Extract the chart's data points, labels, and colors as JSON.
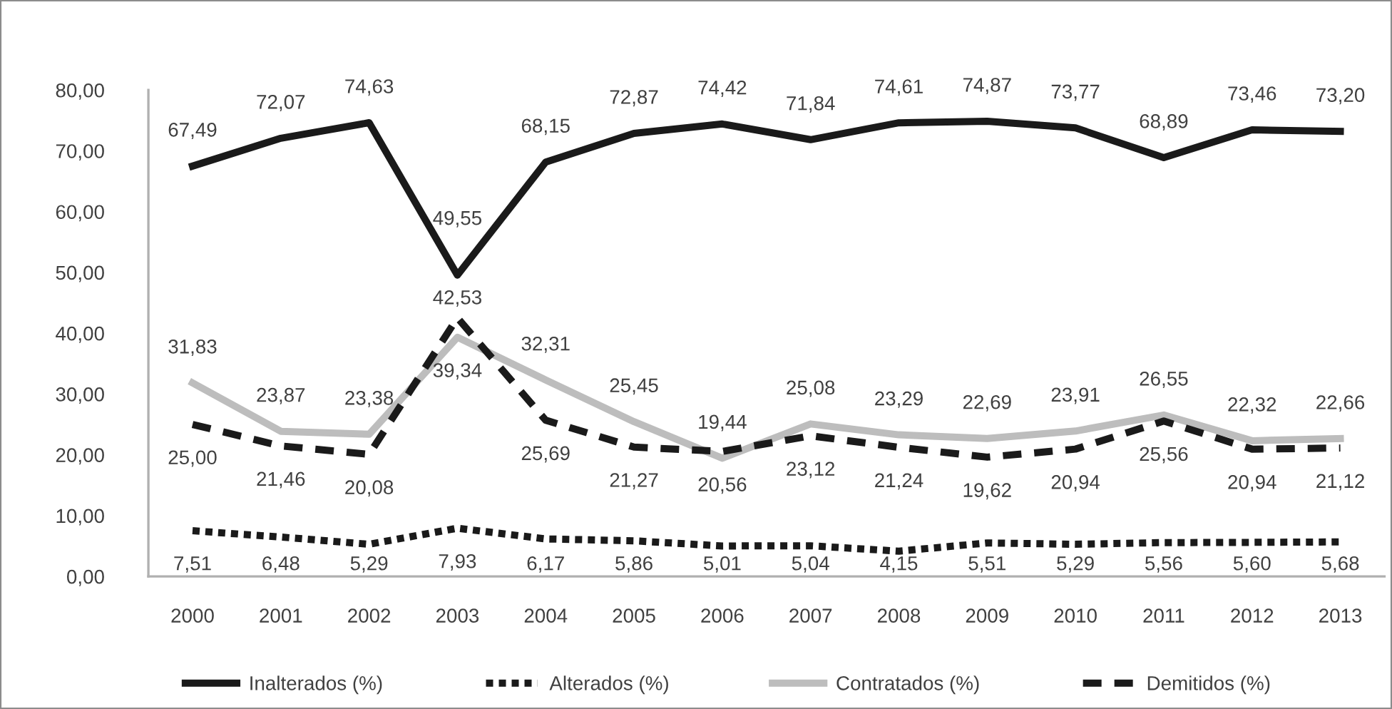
{
  "chart_data": {
    "type": "line",
    "categories": [
      "2000",
      "2001",
      "2002",
      "2003",
      "2004",
      "2005",
      "2006",
      "2007",
      "2008",
      "2009",
      "2010",
      "2011",
      "2012",
      "2013"
    ],
    "ylim": [
      0,
      80
    ],
    "yticks": [
      {
        "value": 0,
        "label": "0,00"
      },
      {
        "value": 10,
        "label": "10,00"
      },
      {
        "value": 20,
        "label": "20,00"
      },
      {
        "value": 30,
        "label": "30,00"
      },
      {
        "value": 40,
        "label": "40,00"
      },
      {
        "value": 50,
        "label": "50,00"
      },
      {
        "value": 60,
        "label": "60,00"
      },
      {
        "value": 70,
        "label": "70,00"
      },
      {
        "value": 80,
        "label": "80,00"
      }
    ],
    "legend": "bottom",
    "series": [
      {
        "name": "Inalterados (%)",
        "color": "#1a1a1a",
        "line_style": "solid",
        "values": [
          67.49,
          72.07,
          74.63,
          49.55,
          68.15,
          72.87,
          74.42,
          71.84,
          74.61,
          74.87,
          73.77,
          68.89,
          73.46,
          73.2
        ],
        "value_labels": [
          "67,49",
          "72,07",
          "74,63",
          "49,55",
          "68,15",
          "72,87",
          "74,42",
          "71,84",
          "74,61",
          "74,87",
          "73,77",
          "68,89",
          "73,46",
          "73,20"
        ]
      },
      {
        "name": "Alterados (%)",
        "color": "#1a1a1a",
        "line_style": "dotted",
        "values": [
          7.51,
          6.48,
          5.29,
          7.93,
          6.17,
          5.86,
          5.01,
          5.04,
          4.15,
          5.51,
          5.29,
          5.56,
          5.6,
          5.68
        ],
        "value_labels": [
          "7,51",
          "6,48",
          "5,29",
          "7,93",
          "6,17",
          "5,86",
          "5,01",
          "5,04",
          "4,15",
          "5,51",
          "5,29",
          "5,56",
          "5,60",
          "5,68"
        ]
      },
      {
        "name": "Contratados (%)",
        "color": "#bdbdbd",
        "line_style": "solid",
        "values": [
          31.83,
          23.87,
          23.38,
          39.34,
          32.31,
          25.45,
          19.44,
          25.08,
          23.29,
          22.69,
          23.91,
          26.55,
          22.32,
          22.66
        ],
        "value_labels": [
          "31,83",
          "23,87",
          "23,38",
          "39,34",
          "32,31",
          "25,45",
          "19,44",
          "25,08",
          "23,29",
          "22,69",
          "23,91",
          "26,55",
          "22,32",
          "22,66"
        ]
      },
      {
        "name": "Demitidos (%)",
        "color": "#1a1a1a",
        "line_style": "dashed",
        "values": [
          25.0,
          21.46,
          20.08,
          42.53,
          25.69,
          21.27,
          20.56,
          23.12,
          21.24,
          19.62,
          20.94,
          25.56,
          20.94,
          21.12
        ],
        "value_labels": [
          "25,00",
          "21,46",
          "20,08",
          "42,53",
          "25,69",
          "21,27",
          "20,56",
          "23,12",
          "21,24",
          "19,62",
          "20,94",
          "25,56",
          "20,94",
          "21,12"
        ]
      }
    ]
  }
}
